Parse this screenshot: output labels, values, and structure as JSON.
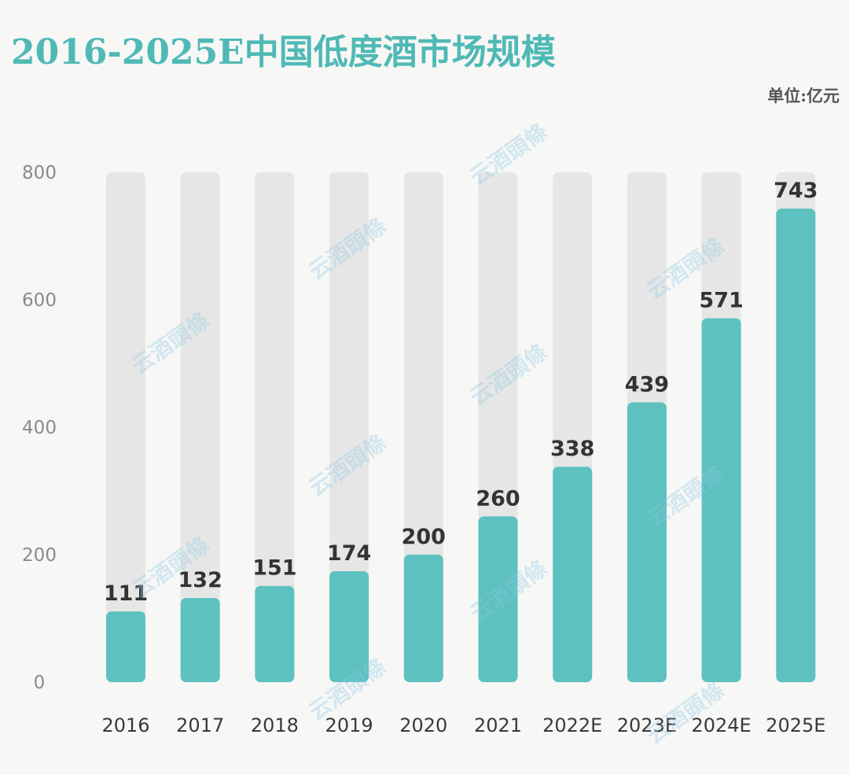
{
  "title": "2016-2025E中国低度酒市场规模",
  "unit": "单位:亿元",
  "watermark": "云酒頭條",
  "colors": {
    "bar": "#5cc1bf",
    "track": "#e6e6e6",
    "title": "#4fb9b5",
    "label": "#333333",
    "tick": "#8a8a8a"
  },
  "chart_data": {
    "type": "bar",
    "categories": [
      "2016",
      "2017",
      "2018",
      "2019",
      "2020",
      "2021",
      "2022E",
      "2023E",
      "2024E",
      "2025E"
    ],
    "values": [
      111,
      132,
      151,
      174,
      200,
      260,
      338,
      439,
      571,
      743
    ],
    "ylim": [
      0,
      800
    ],
    "yticks": [
      0,
      200,
      400,
      600,
      800
    ],
    "grid": false,
    "legend": "none"
  }
}
